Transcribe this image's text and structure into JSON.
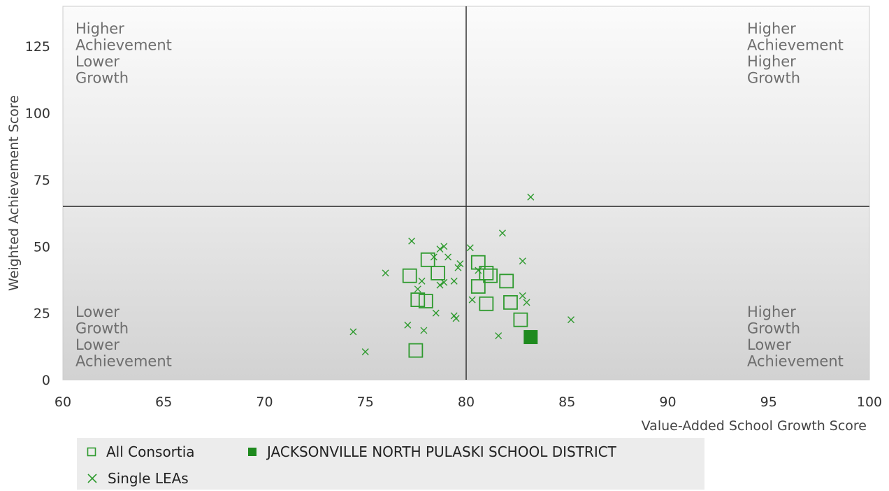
{
  "chart_data": {
    "type": "scatter",
    "title": "",
    "xlabel": "Value-Added School Growth Score",
    "ylabel": "Weighted Achievement Score",
    "xlim": [
      60,
      100
    ],
    "ylim": [
      0,
      140
    ],
    "x_ticks": [
      "60",
      "65",
      "70",
      "75",
      "80",
      "85",
      "90",
      "95",
      "100"
    ],
    "y_ticks": [
      "0",
      "25",
      "50",
      "75",
      "100",
      "125"
    ],
    "grid": false,
    "reference_lines": {
      "x": 80,
      "y": 65
    },
    "quadrant_labels": {
      "top_left": [
        "Higher",
        "Achievement",
        "Lower",
        "Growth"
      ],
      "top_right": [
        "Higher",
        "Achievement",
        "Higher",
        "Growth"
      ],
      "bottom_left": [
        "Lower",
        "Growth",
        "Lower",
        "Achievement"
      ],
      "bottom_right": [
        "Higher",
        "Growth",
        "Lower",
        "Achievement"
      ]
    },
    "legend_position": "bottom-left",
    "series": [
      {
        "name": "All Consortia",
        "marker": "open-square",
        "color": "#2e9a2e",
        "points": [
          [
            77.2,
            39
          ],
          [
            78.6,
            40
          ],
          [
            78.1,
            45
          ],
          [
            77.6,
            30
          ],
          [
            78.0,
            29.5
          ],
          [
            77.5,
            11
          ],
          [
            80.6,
            44
          ],
          [
            80.6,
            35
          ],
          [
            81.0,
            40
          ],
          [
            81.2,
            39
          ],
          [
            81.0,
            28.5
          ],
          [
            82.0,
            37
          ],
          [
            82.2,
            29
          ],
          [
            82.7,
            22.5
          ]
        ]
      },
      {
        "name": "JACKSONVILLE NORTH PULASKI SCHOOL DISTRICT",
        "marker": "filled-square",
        "color": "#1e8a1e",
        "points": [
          [
            83.2,
            16
          ]
        ]
      },
      {
        "name": "Single LEAs",
        "marker": "x",
        "color": "#2e9a2e",
        "points": [
          [
            77.3,
            52
          ],
          [
            76.0,
            40
          ],
          [
            74.4,
            18
          ],
          [
            75.0,
            10.5
          ],
          [
            77.1,
            20.5
          ],
          [
            77.9,
            18.5
          ],
          [
            77.8,
            37
          ],
          [
            77.6,
            34
          ],
          [
            78.4,
            46
          ],
          [
            78.7,
            49
          ],
          [
            78.9,
            50
          ],
          [
            79.1,
            46
          ],
          [
            78.7,
            35.5
          ],
          [
            78.9,
            36.5
          ],
          [
            79.4,
            37
          ],
          [
            79.6,
            42
          ],
          [
            79.7,
            43.5
          ],
          [
            80.2,
            49.5
          ],
          [
            78.5,
            25
          ],
          [
            79.4,
            24
          ],
          [
            79.5,
            23
          ],
          [
            80.3,
            30
          ],
          [
            80.6,
            41
          ],
          [
            81.8,
            55
          ],
          [
            81.6,
            16.5
          ],
          [
            82.8,
            44.5
          ],
          [
            82.8,
            31.5
          ],
          [
            83.0,
            29
          ],
          [
            83.2,
            68.5
          ],
          [
            85.2,
            22.5
          ]
        ]
      }
    ]
  }
}
